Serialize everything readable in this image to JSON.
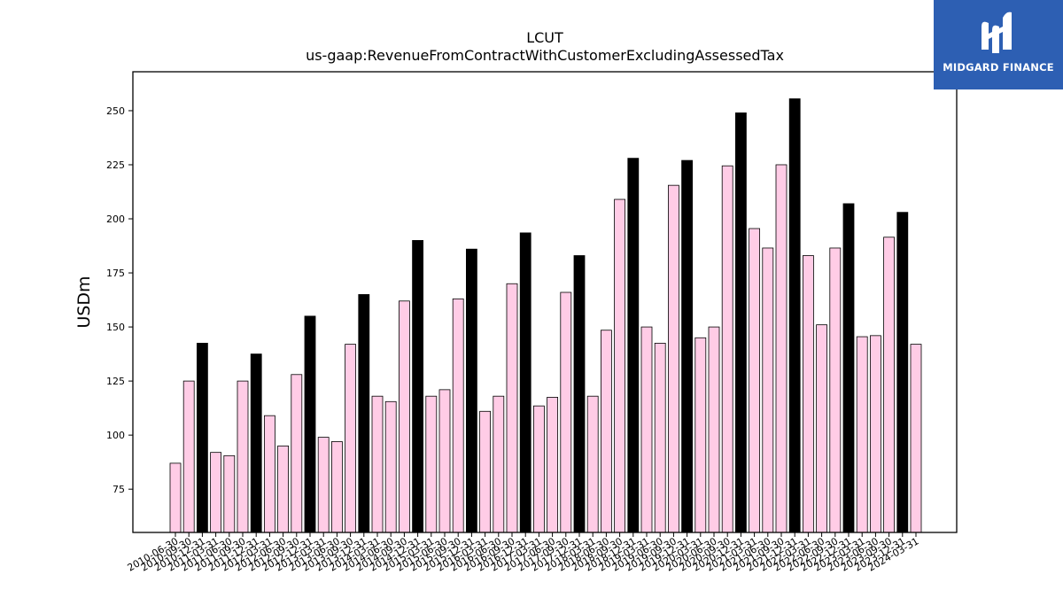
{
  "logo": {
    "brand_text": "MIDGARD FINANCE",
    "bg_color": "#2d5fb3"
  },
  "chart_data": {
    "type": "bar",
    "title": "LCUT",
    "subtitle": "us-gaap:RevenueFromContractWithCustomerExcludingAssessedTax",
    "xlabel": "",
    "ylabel": "USDm",
    "ylim": [
      55,
      268
    ],
    "yticks": [
      75,
      100,
      125,
      150,
      175,
      200,
      225,
      250
    ],
    "grid": false,
    "colors": {
      "quarter": "#ffcce6",
      "annual": "#000000",
      "edge": "#000000"
    },
    "categories": [
      "2010-06-30",
      "2010-09-30",
      "2010-12-31",
      "2011-03-31",
      "2011-06-30",
      "2011-09-30",
      "2011-12-31",
      "2012-03-31",
      "2012-06-30",
      "2012-09-30",
      "2012-12-31",
      "2013-03-31",
      "2013-06-30",
      "2013-09-30",
      "2013-12-31",
      "2014-03-31",
      "2014-06-30",
      "2014-09-30",
      "2014-12-31",
      "2015-03-31",
      "2015-06-30",
      "2015-09-30",
      "2015-12-31",
      "2016-03-31",
      "2016-06-30",
      "2016-09-30",
      "2016-12-31",
      "2017-03-31",
      "2017-06-30",
      "2017-09-30",
      "2017-12-31",
      "2018-03-31",
      "2018-06-30",
      "2018-09-30",
      "2018-12-31",
      "2019-03-31",
      "2019-06-30",
      "2019-09-30",
      "2019-12-31",
      "2020-03-31",
      "2020-06-30",
      "2020-09-30",
      "2020-12-31",
      "2021-03-31",
      "2021-06-30",
      "2021-09-30",
      "2021-12-31",
      "2022-03-31",
      "2022-06-30",
      "2022-09-30",
      "2022-12-31",
      "2023-03-31",
      "2023-06-30",
      "2023-09-30",
      "2023-12-31",
      "2024-03-31"
    ],
    "values": [
      87,
      125,
      142.5,
      92,
      90.5,
      125,
      137.5,
      109,
      95,
      128,
      155,
      99,
      97,
      142,
      165,
      118,
      115.5,
      162,
      190,
      118,
      121,
      163,
      186,
      111,
      118,
      170,
      193.5,
      113.5,
      117.5,
      166,
      183,
      118,
      148.5,
      209,
      228,
      150,
      142.5,
      215.5,
      227,
      145,
      150,
      224.5,
      249,
      195.5,
      186.5,
      225,
      255.5,
      183,
      151,
      186.5,
      207,
      145.5,
      146,
      191.5,
      203,
      142
    ],
    "annual": [
      false,
      false,
      true,
      false,
      false,
      false,
      true,
      false,
      false,
      false,
      true,
      false,
      false,
      false,
      true,
      false,
      false,
      false,
      true,
      false,
      false,
      false,
      true,
      false,
      false,
      false,
      true,
      false,
      false,
      false,
      true,
      false,
      false,
      false,
      true,
      false,
      false,
      false,
      true,
      false,
      false,
      false,
      true,
      false,
      false,
      false,
      true,
      false,
      false,
      false,
      true,
      false,
      false,
      false,
      true,
      false
    ]
  }
}
